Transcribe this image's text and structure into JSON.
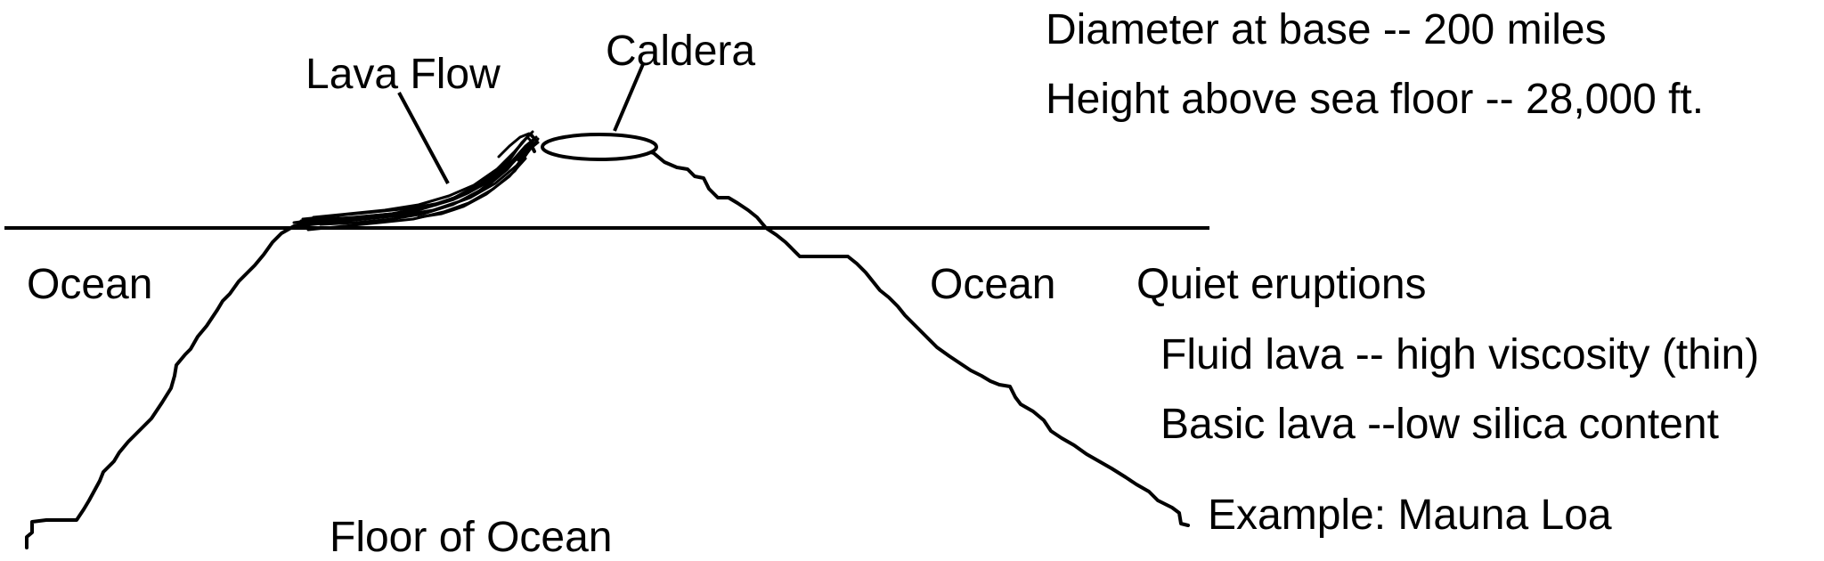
{
  "labels": {
    "lava_flow": "Lava Flow",
    "caldera": "Caldera",
    "ocean_left": "Ocean",
    "ocean_right": "Ocean",
    "floor": "Floor of Ocean"
  },
  "info": {
    "diameter": "Diameter at base -- 200 miles",
    "height": "Height above sea floor -- 28,000 ft.",
    "quiet": "Quiet eruptions",
    "fluid": "Fluid lava -- high viscosity (thin)",
    "basic": "Basic lava --low silica content",
    "example": "Example:  Mauna Loa"
  },
  "colors": {
    "ink": "#000000",
    "background": "#ffffff"
  }
}
